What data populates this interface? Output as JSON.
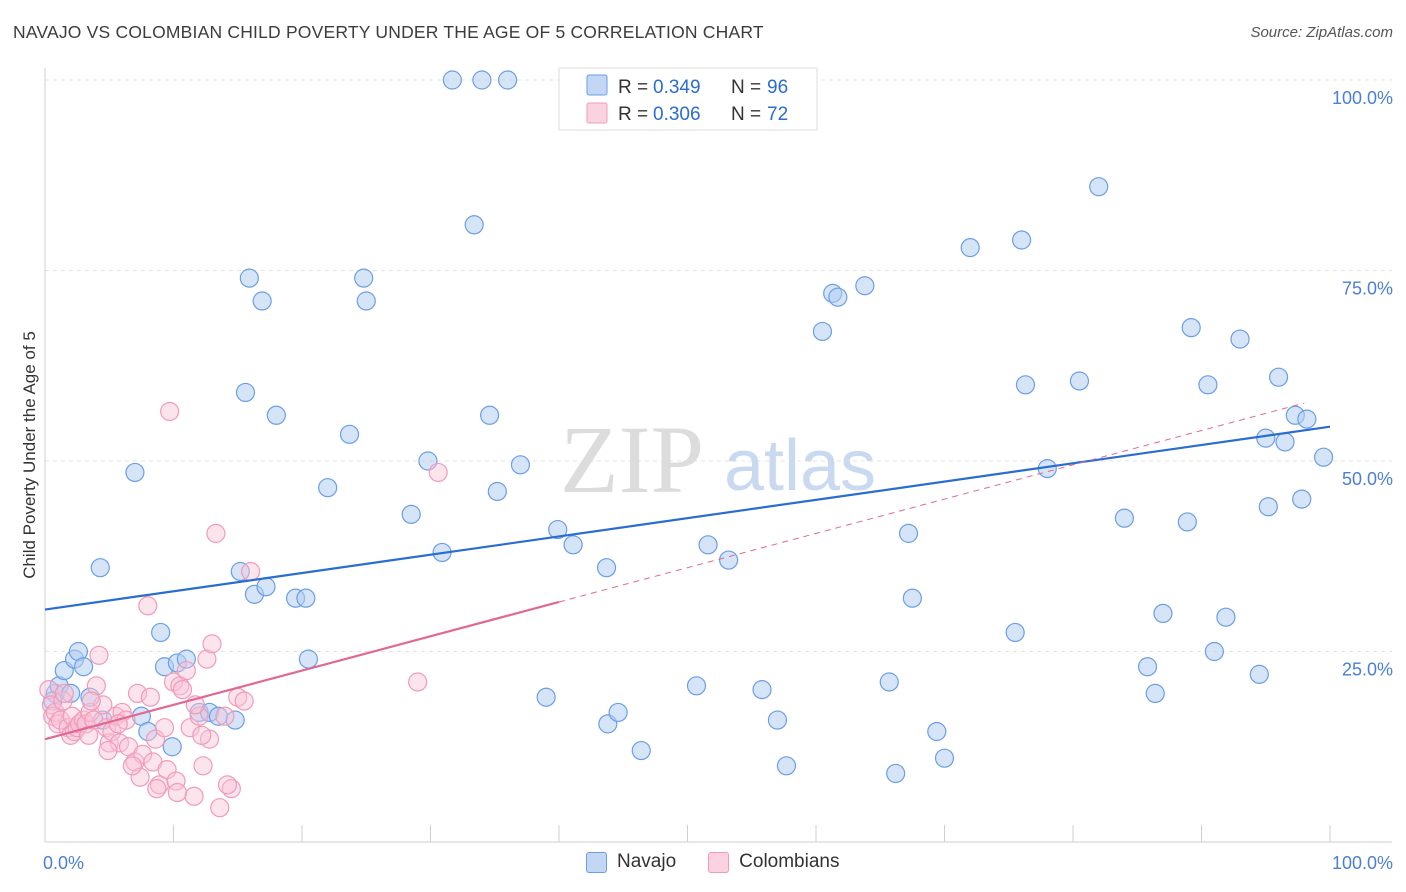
{
  "title": "NAVAJO VS COLOMBIAN CHILD POVERTY UNDER THE AGE OF 5 CORRELATION CHART",
  "source": "Source: ZipAtlas.com",
  "watermark": {
    "zip": "ZIP",
    "atlas": "atlas"
  },
  "chart_data": {
    "type": "scatter",
    "title": "NAVAJO VS COLOMBIAN CHILD POVERTY UNDER THE AGE OF 5 CORRELATION CHART",
    "xlabel": "",
    "ylabel": "Child Poverty Under the Age of 5",
    "xlim": [
      0,
      100
    ],
    "ylim": [
      0,
      100
    ],
    "x_tick_labels": {
      "left": "0.0%",
      "right": "100.0%"
    },
    "y_ticks": [
      {
        "value": 100,
        "label": "100.0%"
      },
      {
        "value": 75,
        "label": "75.0%"
      },
      {
        "value": 50,
        "label": "50.0%"
      },
      {
        "value": 25,
        "label": "25.0%"
      }
    ],
    "legend_stats": [
      {
        "r_label": "R =",
        "r_value": "0.349",
        "n_label": "N =",
        "n_value": "96"
      },
      {
        "r_label": "R =",
        "r_value": "0.306",
        "n_label": "N =",
        "n_value": "72"
      }
    ],
    "colors": {
      "navajo": "#6a9ee8",
      "navajo_line": "#2a6dd0",
      "colombians": "#f29ab8",
      "colombians_line": "#e06892",
      "tick": "#4a7fd4"
    },
    "series": [
      {
        "name": "Navajo",
        "trend": {
          "x0": 0,
          "y0": 30.5,
          "x1": 100,
          "y1": 54.5
        },
        "points": [
          [
            0.8,
            19.5
          ],
          [
            1.1,
            20.5
          ],
          [
            0.6,
            18.5
          ],
          [
            1.5,
            22.5
          ],
          [
            2.3,
            24.0
          ],
          [
            2.6,
            25.0
          ],
          [
            3.0,
            23.0
          ],
          [
            2.0,
            19.5
          ],
          [
            3.5,
            19.0
          ],
          [
            4.5,
            16.0
          ],
          [
            4.3,
            36.0
          ],
          [
            7.0,
            48.5
          ],
          [
            7.5,
            16.5
          ],
          [
            8.0,
            14.5
          ],
          [
            9.0,
            27.5
          ],
          [
            9.3,
            23.0
          ],
          [
            9.9,
            12.5
          ],
          [
            10.3,
            23.5
          ],
          [
            11.0,
            24.0
          ],
          [
            12.0,
            17.0
          ],
          [
            12.8,
            17.0
          ],
          [
            13.5,
            16.5
          ],
          [
            14.8,
            16.0
          ],
          [
            15.2,
            35.5
          ],
          [
            15.9,
            74.0
          ],
          [
            16.3,
            32.5
          ],
          [
            17.2,
            33.5
          ],
          [
            16.9,
            71.0
          ],
          [
            15.6,
            59.0
          ],
          [
            18.0,
            56.0
          ],
          [
            19.5,
            32.0
          ],
          [
            20.5,
            24.0
          ],
          [
            20.3,
            32.0
          ],
          [
            22.0,
            46.5
          ],
          [
            23.7,
            53.5
          ],
          [
            24.8,
            74.0
          ],
          [
            25.0,
            71.0
          ],
          [
            28.5,
            43.0
          ],
          [
            29.8,
            50.0
          ],
          [
            30.9,
            38.0
          ],
          [
            34.0,
            100.0
          ],
          [
            36.0,
            100.0
          ],
          [
            31.7,
            100.0
          ],
          [
            33.4,
            81.0
          ],
          [
            34.6,
            56.0
          ],
          [
            35.2,
            46.0
          ],
          [
            37.0,
            49.5
          ],
          [
            39.0,
            19.0
          ],
          [
            39.9,
            41.0
          ],
          [
            41.1,
            39.0
          ],
          [
            43.7,
            36.0
          ],
          [
            43.8,
            15.5
          ],
          [
            44.6,
            17.0
          ],
          [
            46.4,
            12.0
          ],
          [
            50.7,
            20.5
          ],
          [
            51.6,
            39.0
          ],
          [
            53.2,
            37.0
          ],
          [
            55.8,
            20.0
          ],
          [
            57.0,
            16.0
          ],
          [
            57.7,
            10.0
          ],
          [
            60.5,
            67.0
          ],
          [
            61.3,
            72.0
          ],
          [
            61.7,
            71.5
          ],
          [
            63.8,
            73.0
          ],
          [
            65.7,
            21.0
          ],
          [
            66.2,
            9.0
          ],
          [
            67.2,
            40.5
          ],
          [
            67.5,
            32.0
          ],
          [
            69.4,
            14.5
          ],
          [
            70.0,
            11.0
          ],
          [
            72.0,
            78.0
          ],
          [
            75.5,
            27.5
          ],
          [
            76.3,
            60.0
          ],
          [
            76.0,
            79.0
          ],
          [
            78.0,
            49.0
          ],
          [
            80.5,
            60.5
          ],
          [
            82.0,
            86.0
          ],
          [
            84.0,
            42.5
          ],
          [
            85.8,
            23.0
          ],
          [
            86.4,
            19.5
          ],
          [
            87.0,
            30.0
          ],
          [
            88.9,
            42.0
          ],
          [
            89.2,
            67.5
          ],
          [
            90.5,
            60.0
          ],
          [
            91.0,
            25.0
          ],
          [
            91.9,
            29.5
          ],
          [
            93.0,
            66.0
          ],
          [
            94.5,
            22.0
          ],
          [
            95.0,
            53.0
          ],
          [
            95.2,
            44.0
          ],
          [
            96.0,
            61.0
          ],
          [
            96.5,
            52.5
          ],
          [
            97.3,
            56.0
          ],
          [
            97.8,
            45.0
          ],
          [
            98.2,
            55.5
          ],
          [
            99.5,
            50.5
          ]
        ]
      },
      {
        "name": "Colombians",
        "trend": {
          "x0": 0,
          "y0": 13.5,
          "x1": 40,
          "y1": 31.5
        },
        "points": [
          [
            0.3,
            20.0
          ],
          [
            0.5,
            18.0
          ],
          [
            0.6,
            16.5
          ],
          [
            0.8,
            17.0
          ],
          [
            1.0,
            15.5
          ],
          [
            1.2,
            16.0
          ],
          [
            1.4,
            18.5
          ],
          [
            1.5,
            19.5
          ],
          [
            1.8,
            15.0
          ],
          [
            2.0,
            14.0
          ],
          [
            2.1,
            16.5
          ],
          [
            2.3,
            14.5
          ],
          [
            2.5,
            15.0
          ],
          [
            2.7,
            15.5
          ],
          [
            3.0,
            16.0
          ],
          [
            3.2,
            15.5
          ],
          [
            3.4,
            14.0
          ],
          [
            3.5,
            17.0
          ],
          [
            3.8,
            16.0
          ],
          [
            4.0,
            20.5
          ],
          [
            4.2,
            24.5
          ],
          [
            4.5,
            18.0
          ],
          [
            4.8,
            15.0
          ],
          [
            5.0,
            13.0
          ],
          [
            5.2,
            14.5
          ],
          [
            5.5,
            16.5
          ],
          [
            5.8,
            13.0
          ],
          [
            6.0,
            17.0
          ],
          [
            6.3,
            16.0
          ],
          [
            6.5,
            12.5
          ],
          [
            7.0,
            10.5
          ],
          [
            7.2,
            19.5
          ],
          [
            7.4,
            8.5
          ],
          [
            7.6,
            11.5
          ],
          [
            8.0,
            31.0
          ],
          [
            8.2,
            19.0
          ],
          [
            8.4,
            10.5
          ],
          [
            8.6,
            13.5
          ],
          [
            8.9,
            7.5
          ],
          [
            9.3,
            15.0
          ],
          [
            9.5,
            9.5
          ],
          [
            9.7,
            56.5
          ],
          [
            10.0,
            21.0
          ],
          [
            10.2,
            8.0
          ],
          [
            10.5,
            20.5
          ],
          [
            10.7,
            20.0
          ],
          [
            11.0,
            22.5
          ],
          [
            11.3,
            15.0
          ],
          [
            11.6,
            6.0
          ],
          [
            12.0,
            16.5
          ],
          [
            12.3,
            10.0
          ],
          [
            12.6,
            24.0
          ],
          [
            12.8,
            13.5
          ],
          [
            13.0,
            26.0
          ],
          [
            13.3,
            40.5
          ],
          [
            13.6,
            4.5
          ],
          [
            14.0,
            16.5
          ],
          [
            14.5,
            7.0
          ],
          [
            15.0,
            19.0
          ],
          [
            15.5,
            18.5
          ],
          [
            16.0,
            35.5
          ],
          [
            8.7,
            7.0
          ],
          [
            10.3,
            6.5
          ],
          [
            14.2,
            7.5
          ],
          [
            12.2,
            14.0
          ],
          [
            11.7,
            18.0
          ],
          [
            6.8,
            10.0
          ],
          [
            5.7,
            15.5
          ],
          [
            3.6,
            18.5
          ],
          [
            30.6,
            48.5
          ],
          [
            29.0,
            21.0
          ],
          [
            4.9,
            12.0
          ]
        ]
      }
    ]
  },
  "legend_bottom": [
    {
      "label": "Navajo"
    },
    {
      "label": "Colombians"
    }
  ]
}
